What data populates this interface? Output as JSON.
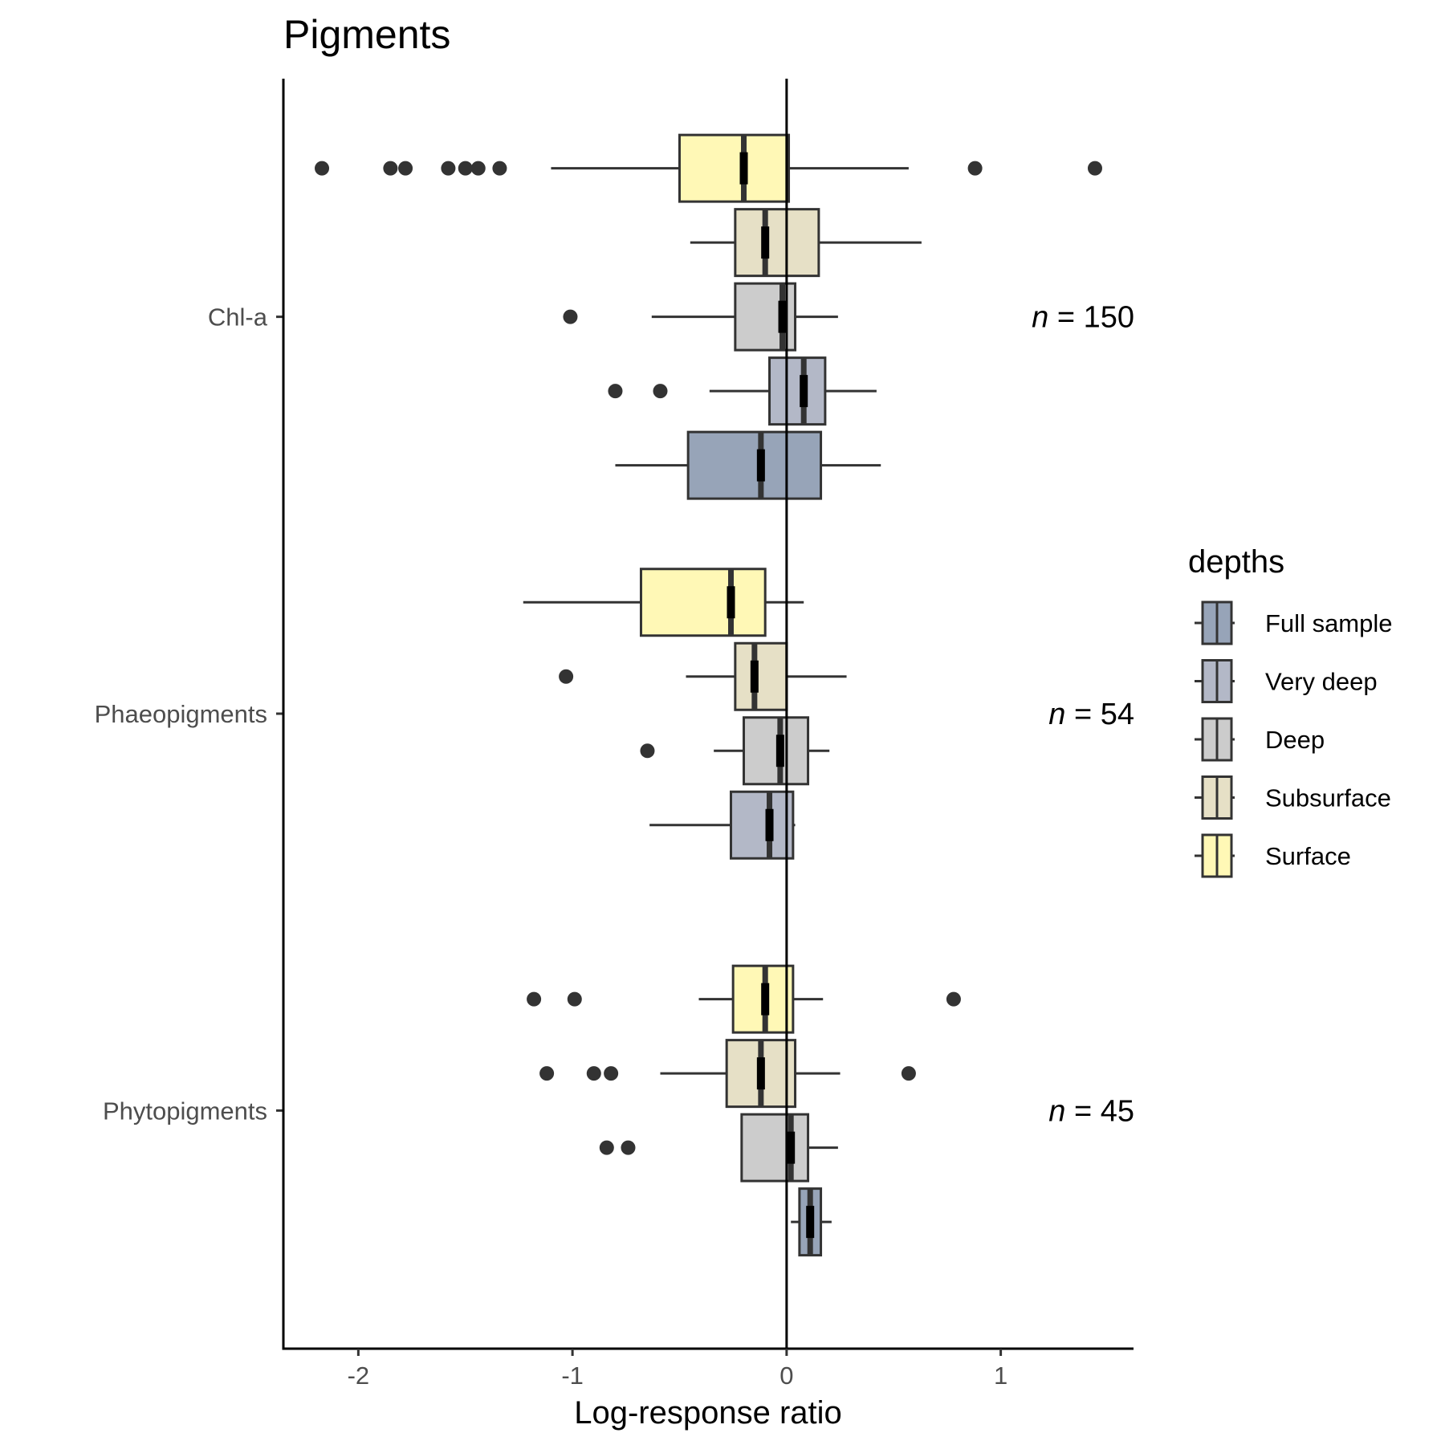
{
  "chart_data": {
    "type": "boxplot",
    "orientation": "horizontal",
    "title": "Pigments",
    "xlabel": "Log-response ratio",
    "ylabel": "",
    "xlim": [
      -2.35,
      1.62
    ],
    "xticks": [
      -2,
      -1,
      0,
      1
    ],
    "xtick_labels": [
      "-2",
      "-1",
      "0",
      "1"
    ],
    "reference_line_x": 0,
    "grid": false,
    "legend": {
      "title": "depths",
      "placement": "right",
      "entries": [
        {
          "name": "Full sample",
          "color": "#97a4b8"
        },
        {
          "name": "Very deep",
          "color": "#b3b8c7"
        },
        {
          "name": "Deep",
          "color": "#cccccc"
        },
        {
          "name": "Subsurface",
          "color": "#e6e0c6"
        },
        {
          "name": "Surface",
          "color": "#fff8b6"
        }
      ]
    },
    "categories": [
      {
        "name": "Phytopigments",
        "n_label": "= 45",
        "boxes": [
          {
            "depth": "Surface",
            "color": "#fff8b6",
            "whisker_low": -0.41,
            "q1": -0.25,
            "median": -0.1,
            "q3": 0.03,
            "whisker_high": 0.17,
            "outliers": [
              -1.18,
              -0.99,
              0.78
            ]
          },
          {
            "depth": "Subsurface",
            "color": "#e6e0c6",
            "whisker_low": -0.59,
            "q1": -0.28,
            "median": -0.12,
            "q3": 0.04,
            "whisker_high": 0.25,
            "outliers": [
              -1.12,
              -0.9,
              -0.82,
              0.57
            ]
          },
          {
            "depth": "Deep",
            "color": "#cccccc",
            "whisker_low": -0.21,
            "q1": -0.21,
            "median": 0.02,
            "q3": 0.1,
            "whisker_high": 0.24,
            "outliers": [
              -0.84,
              -0.74
            ]
          },
          {
            "depth": "Full sample",
            "color": "#97a4b8",
            "whisker_low": 0.02,
            "q1": 0.06,
            "median": 0.11,
            "q3": 0.16,
            "whisker_high": 0.21,
            "outliers": []
          }
        ]
      },
      {
        "name": "Phaeopigments",
        "n_label": "= 54",
        "boxes": [
          {
            "depth": "Surface",
            "color": "#fff8b6",
            "whisker_low": -1.23,
            "q1": -0.68,
            "median": -0.26,
            "q3": -0.1,
            "whisker_high": 0.08,
            "outliers": []
          },
          {
            "depth": "Subsurface",
            "color": "#e6e0c6",
            "whisker_low": -0.47,
            "q1": -0.24,
            "median": -0.15,
            "q3": 0.0,
            "whisker_high": 0.28,
            "outliers": [
              -1.03
            ]
          },
          {
            "depth": "Deep",
            "color": "#cccccc",
            "whisker_low": -0.34,
            "q1": -0.2,
            "median": -0.03,
            "q3": 0.1,
            "whisker_high": 0.2,
            "outliers": [
              -0.65
            ]
          },
          {
            "depth": "Very deep",
            "color": "#b3b8c7",
            "whisker_low": -0.64,
            "q1": -0.26,
            "median": -0.08,
            "q3": 0.03,
            "whisker_high": 0.04,
            "outliers": []
          }
        ]
      },
      {
        "name": "Chl-a",
        "n_label": "= 150",
        "boxes": [
          {
            "depth": "Surface",
            "color": "#fff8b6",
            "whisker_low": -1.1,
            "q1": -0.5,
            "median": -0.2,
            "q3": 0.01,
            "whisker_high": 0.57,
            "outliers": [
              -2.17,
              -1.85,
              -1.78,
              -1.58,
              -1.5,
              -1.44,
              -1.34,
              0.88,
              1.44
            ]
          },
          {
            "depth": "Subsurface",
            "color": "#e6e0c6",
            "whisker_low": -0.45,
            "q1": -0.24,
            "median": -0.1,
            "q3": 0.15,
            "whisker_high": 0.63,
            "outliers": []
          },
          {
            "depth": "Deep",
            "color": "#cccccc",
            "whisker_low": -0.63,
            "q1": -0.24,
            "median": -0.02,
            "q3": 0.04,
            "whisker_high": 0.24,
            "outliers": [
              -1.01
            ]
          },
          {
            "depth": "Very deep",
            "color": "#b3b8c7",
            "whisker_low": -0.36,
            "q1": -0.08,
            "median": 0.08,
            "q3": 0.18,
            "whisker_high": 0.42,
            "outliers": [
              -0.8,
              -0.59
            ]
          },
          {
            "depth": "Full sample",
            "color": "#97a4b8",
            "whisker_low": -0.8,
            "q1": -0.46,
            "median": -0.12,
            "q3": 0.16,
            "whisker_high": 0.44,
            "outliers": []
          }
        ]
      }
    ]
  }
}
